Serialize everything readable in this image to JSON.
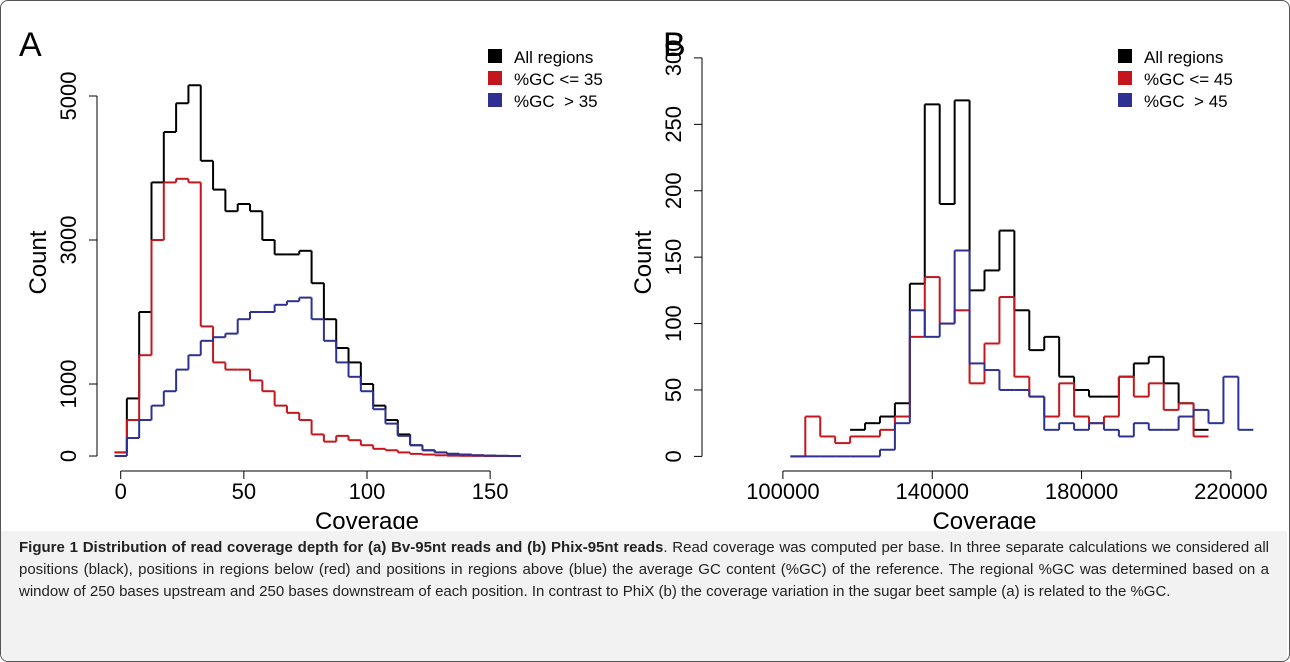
{
  "chart_data": [
    {
      "type": "step",
      "panel": "A",
      "xlabel": "Coverage",
      "ylabel": "Count",
      "xlim": [
        -8,
        208
      ],
      "ylim": [
        -208,
        5861
      ],
      "xticks": [
        0,
        50,
        100,
        150
      ],
      "yticks": [
        0,
        1000,
        3000,
        5000
      ],
      "x": [
        0,
        5,
        10,
        15,
        20,
        25,
        30,
        35,
        40,
        45,
        50,
        55,
        60,
        65,
        70,
        75,
        80,
        85,
        90,
        95,
        100,
        105,
        110,
        115,
        120,
        125,
        130,
        135,
        140,
        145,
        150,
        155,
        160
      ],
      "legend": "top-right",
      "series": [
        {
          "name": "All regions",
          "color": "#000000",
          "values": [
            50,
            800,
            2000,
            3800,
            4500,
            4900,
            5150,
            4100,
            3700,
            3400,
            3500,
            3400,
            3000,
            2800,
            2800,
            2850,
            2400,
            1900,
            1500,
            1300,
            1000,
            700,
            500,
            300,
            150,
            80,
            50,
            30,
            20,
            10,
            5,
            2,
            0
          ]
        },
        {
          "name": "%GC <= 35",
          "color": "#c4161c",
          "values": [
            50,
            500,
            1400,
            3000,
            3800,
            3850,
            3800,
            1800,
            1300,
            1200,
            1200,
            1050,
            900,
            700,
            600,
            500,
            300,
            200,
            280,
            220,
            150,
            100,
            80,
            50,
            30,
            20,
            10,
            5,
            3,
            2,
            1,
            0,
            0
          ]
        },
        {
          "name": "%GC  > 35",
          "color": "#2e3192",
          "values": [
            0,
            250,
            500,
            700,
            900,
            1200,
            1400,
            1600,
            1650,
            1700,
            1900,
            2000,
            2000,
            2100,
            2150,
            2200,
            1900,
            1600,
            1300,
            1100,
            900,
            650,
            450,
            280,
            150,
            80,
            50,
            30,
            20,
            10,
            5,
            2,
            0
          ]
        }
      ]
    },
    {
      "type": "step",
      "panel": "B",
      "xlabel": "Coverage",
      "ylabel": "Count",
      "xlim": [
        79400,
        228600
      ],
      "ylim": [
        -11,
        318
      ],
      "xticks": [
        100000,
        140000,
        180000,
        220000
      ],
      "yticks": [
        0,
        50,
        100,
        150,
        200,
        250,
        300
      ],
      "x": [
        104000,
        108000,
        112000,
        116000,
        120000,
        124000,
        128000,
        132000,
        136000,
        140000,
        144000,
        148000,
        152000,
        156000,
        160000,
        164000,
        168000,
        172000,
        176000,
        180000,
        184000,
        188000,
        192000,
        196000,
        200000,
        204000,
        208000,
        212000,
        216000,
        220000,
        224000
      ],
      "legend": "top-right",
      "series": [
        {
          "name": "All regions",
          "color": "#000000",
          "values": [
            null,
            null,
            null,
            null,
            20,
            25,
            30,
            40,
            130,
            265,
            190,
            268,
            125,
            140,
            170,
            110,
            80,
            90,
            60,
            50,
            45,
            45,
            60,
            70,
            75,
            55,
            40,
            20,
            null,
            null,
            null
          ]
        },
        {
          "name": "%GC <= 45",
          "color": "#c4161c",
          "values": [
            0,
            30,
            15,
            10,
            15,
            15,
            20,
            30,
            90,
            135,
            100,
            110,
            55,
            85,
            120,
            60,
            45,
            30,
            55,
            30,
            25,
            30,
            60,
            45,
            55,
            35,
            40,
            15,
            null,
            null,
            null
          ]
        },
        {
          "name": "%GC  > 45",
          "color": "#2e3192",
          "values": [
            0,
            0,
            0,
            0,
            0,
            0,
            5,
            25,
            110,
            90,
            100,
            155,
            70,
            65,
            50,
            50,
            45,
            20,
            25,
            20,
            25,
            20,
            15,
            25,
            20,
            20,
            30,
            35,
            25,
            60,
            20
          ]
        }
      ]
    }
  ],
  "caption": {
    "title": "Figure 1 Distribution of read coverage depth for (a) Bv-95nt reads and (b) Phix-95nt reads",
    "text": ". Read coverage was computed per base. In three separate calculations we considered all positions (black), positions in regions below (red) and positions in regions above (blue) the average GC content (%GC) of the reference. The regional %GC was determined based on a window of 250 bases upstream and 250 bases downstream of each position. In contrast to PhiX (b) the coverage variation in the sugar beet sample (a) is related to the %GC."
  }
}
